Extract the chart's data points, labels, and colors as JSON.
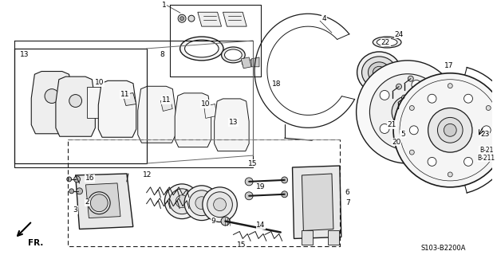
{
  "background_color": "#ffffff",
  "diagram_code": "S103-B2200A",
  "fr_label": "FR.",
  "fig_width": 6.23,
  "fig_height": 3.2,
  "line_color": "#1a1a1a",
  "text_color": "#000000"
}
